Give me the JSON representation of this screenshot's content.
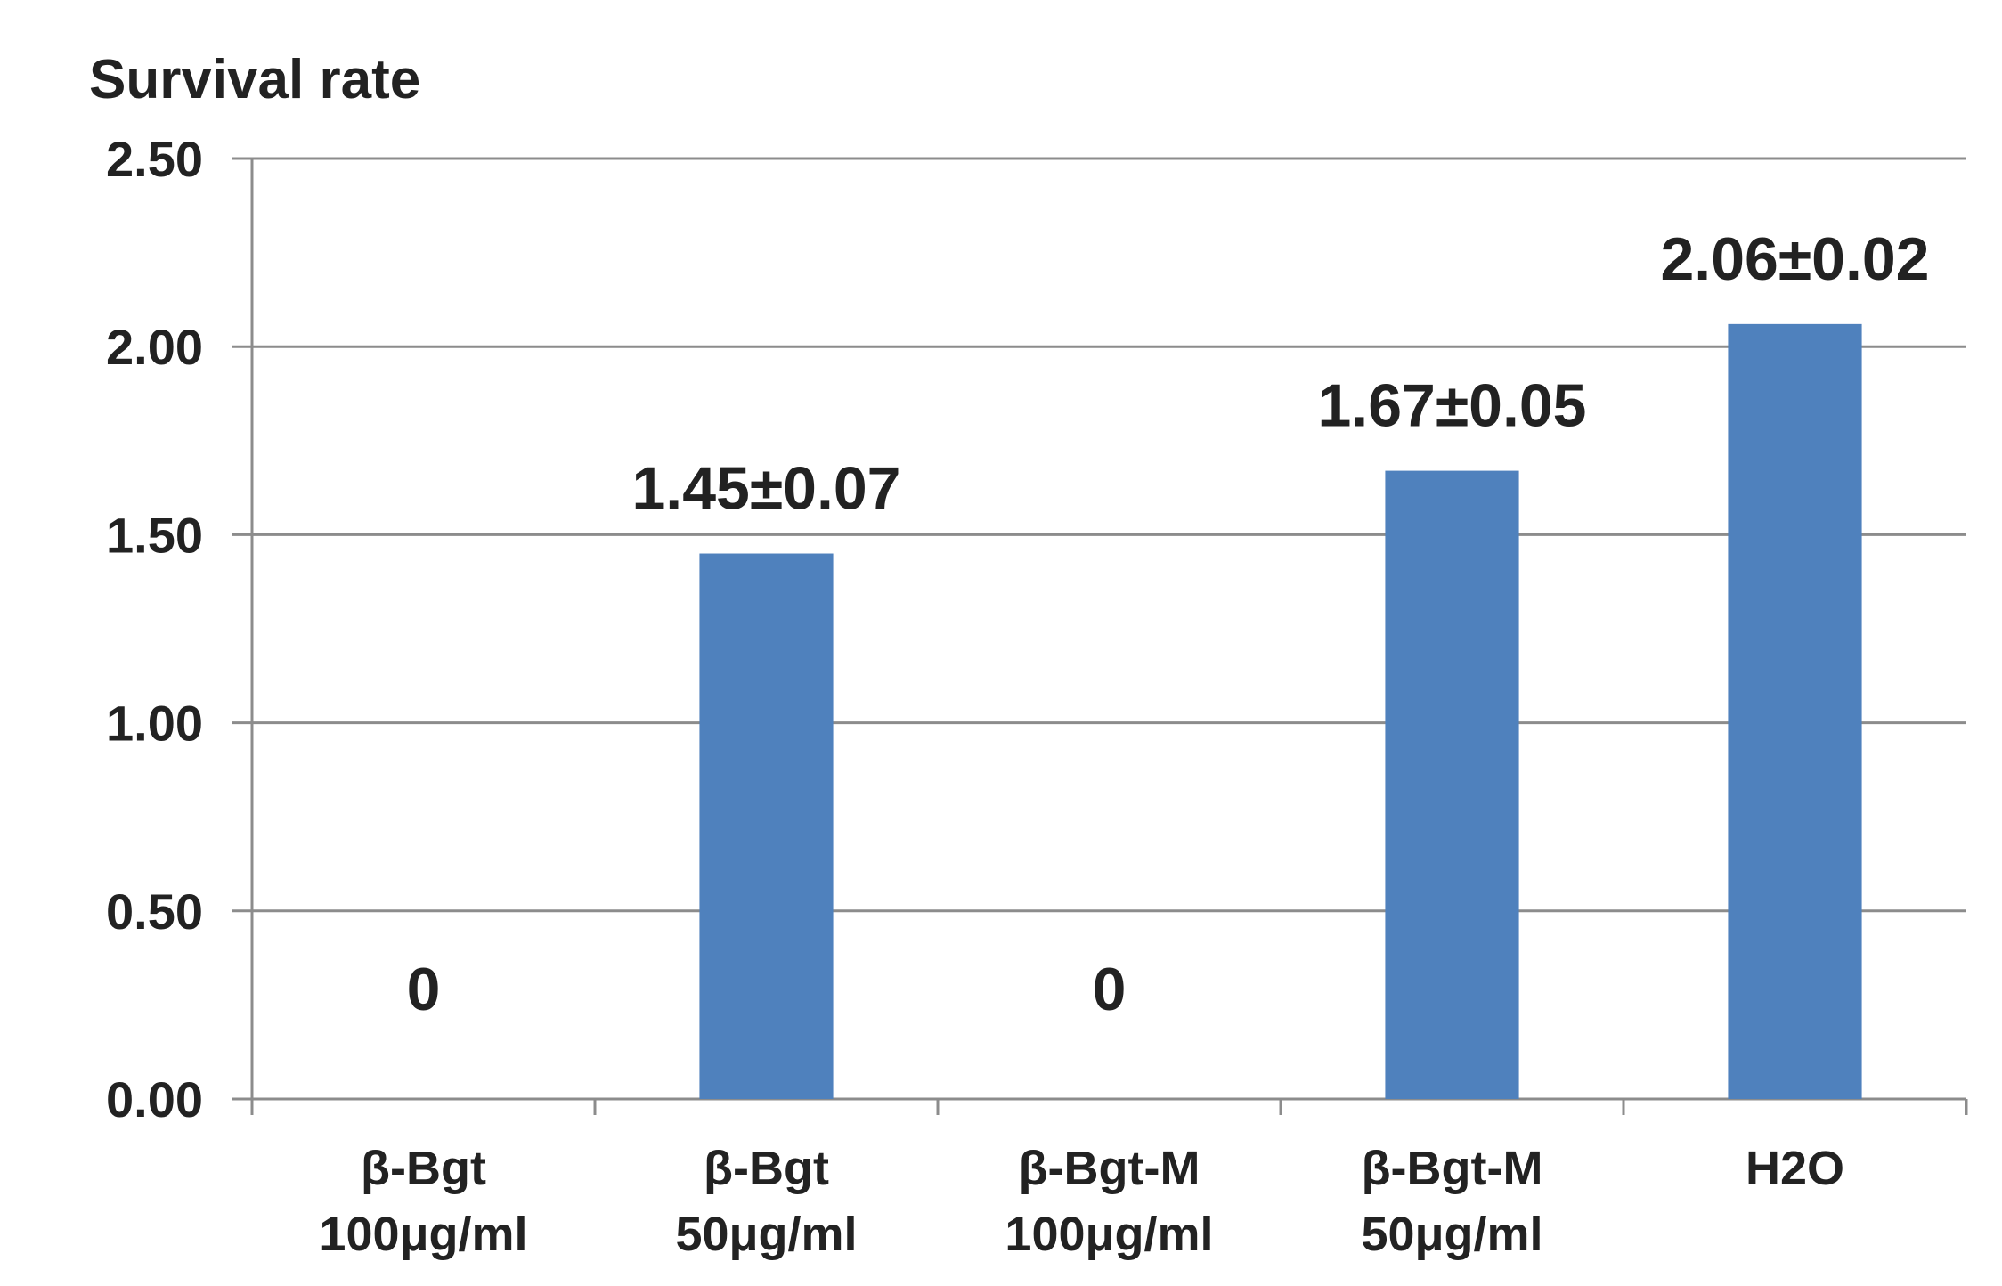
{
  "chart_data": {
    "type": "bar",
    "ylabel": "Survival rate",
    "xlabel": "",
    "ylim": [
      0,
      2.5
    ],
    "yticks": [
      "0.00",
      "0.50",
      "1.00",
      "1.50",
      "2.00",
      "2.50"
    ],
    "categories": [
      [
        "β-Bgt",
        "100μg/ml"
      ],
      [
        "β-Bgt",
        "50μg/ml"
      ],
      [
        "β-Bgt-M",
        "100μg/ml"
      ],
      [
        "β-Bgt-M",
        "50μg/ml"
      ],
      [
        "H2O"
      ]
    ],
    "values": [
      0,
      1.45,
      0,
      1.67,
      2.06
    ],
    "data_labels": [
      "0",
      "1.45±0.07",
      "0",
      "1.67±0.05",
      "2.06±0.02"
    ],
    "bar_color": "#4f81bd",
    "grid": true,
    "legend": "none"
  }
}
